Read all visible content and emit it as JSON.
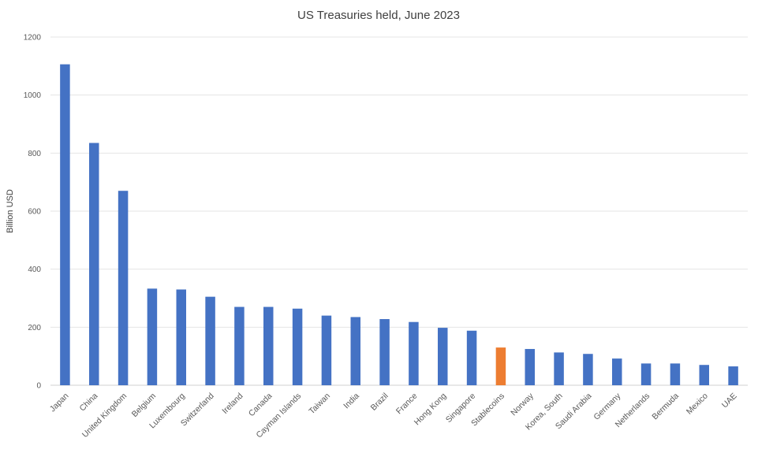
{
  "chart_data": {
    "type": "bar",
    "title": "US Treasuries held, June 2023",
    "xlabel": "",
    "ylabel": "Billion USD",
    "ylim": [
      0,
      1200
    ],
    "yticks": [
      0,
      200,
      400,
      600,
      800,
      1000,
      1200
    ],
    "grid": true,
    "legend": "none",
    "categories": [
      "Japan",
      "China",
      "United Kingdom",
      "Belgium",
      "Luxembourg",
      "Switzerland",
      "Ireland",
      "Canada",
      "Cayman Islands",
      "Taiwan",
      "India",
      "Brazil",
      "France",
      "Hong Kong",
      "Singapore",
      "Stablecoins",
      "Norway",
      "Korea, South",
      "Saudi Arabia",
      "Germany",
      "Netherlands",
      "Bermuda",
      "Mexico",
      "UAE"
    ],
    "values": [
      1106,
      835,
      670,
      333,
      330,
      305,
      270,
      270,
      264,
      240,
      235,
      228,
      218,
      198,
      188,
      130,
      125,
      113,
      108,
      92,
      75,
      75,
      70,
      65
    ],
    "colors": {
      "default": "#4472C4",
      "highlight": "#ED7D31"
    },
    "highlight_categories": [
      "Stablecoins"
    ]
  }
}
